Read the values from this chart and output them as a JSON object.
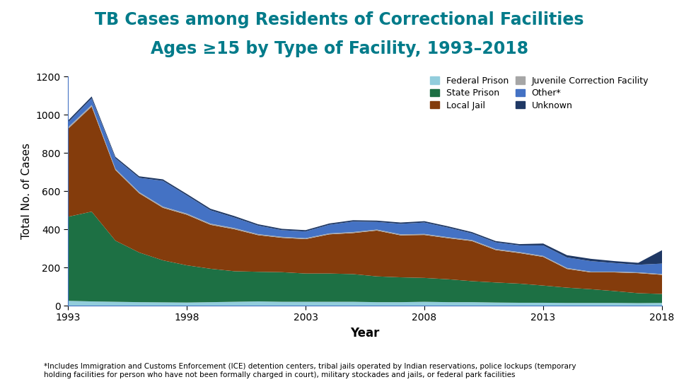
{
  "title_line1": "TB Cases among Residents of Correctional Facilities",
  "title_line2": "Ages ≥15 by Type of Facility, 1993–2018",
  "xlabel": "Year",
  "ylabel": "Total No. of Cases",
  "footnote": "*Includes Immigration and Customs Enforcement (ICE) detention centers, tribal jails operated by Indian reservations, police lockups (temporary\nholding facilities for person who have not been formally charged in court), military stockades and jails, or federal park facilities",
  "years": [
    1993,
    1994,
    1995,
    1996,
    1997,
    1998,
    1999,
    2000,
    2001,
    2002,
    2003,
    2004,
    2005,
    2006,
    2007,
    2008,
    2009,
    2010,
    2011,
    2012,
    2013,
    2014,
    2015,
    2016,
    2017,
    2018
  ],
  "federal_prison": [
    25,
    22,
    20,
    18,
    17,
    16,
    18,
    20,
    22,
    20,
    20,
    20,
    20,
    18,
    18,
    20,
    18,
    18,
    16,
    15,
    15,
    14,
    14,
    14,
    13,
    14
  ],
  "state_prison": [
    440,
    470,
    320,
    260,
    220,
    195,
    175,
    160,
    155,
    155,
    148,
    148,
    145,
    135,
    130,
    125,
    120,
    110,
    105,
    100,
    90,
    80,
    72,
    62,
    52,
    47
  ],
  "local_jail": [
    460,
    550,
    370,
    310,
    275,
    265,
    230,
    220,
    192,
    180,
    180,
    205,
    215,
    240,
    220,
    225,
    215,
    210,
    170,
    160,
    150,
    98,
    88,
    98,
    105,
    100
  ],
  "juvenile": [
    8,
    8,
    6,
    6,
    6,
    6,
    6,
    6,
    5,
    5,
    5,
    5,
    5,
    5,
    5,
    5,
    5,
    5,
    5,
    5,
    5,
    5,
    4,
    4,
    4,
    4
  ],
  "other": [
    25,
    35,
    55,
    75,
    135,
    95,
    70,
    55,
    45,
    35,
    35,
    45,
    55,
    40,
    55,
    60,
    50,
    35,
    35,
    35,
    55,
    55,
    55,
    45,
    40,
    55
  ],
  "unknown": [
    10,
    10,
    8,
    8,
    8,
    8,
    8,
    8,
    7,
    7,
    7,
    7,
    7,
    7,
    7,
    7,
    7,
    7,
    7,
    7,
    10,
    12,
    12,
    10,
    10,
    70
  ],
  "colors": {
    "federal_prison": "#92CDDC",
    "state_prison": "#1D7044",
    "local_jail": "#843C0C",
    "juvenile": "#A6A6A6",
    "other": "#4472C4",
    "unknown": "#1F3864"
  },
  "legend_labels": {
    "federal_prison": "Federal Prison",
    "state_prison": "State Prison",
    "local_jail": "Local Jail",
    "juvenile": "Juvenile Correction Facility",
    "other": "Other*",
    "unknown": "Unknown"
  },
  "ylim": [
    0,
    1200
  ],
  "yticks": [
    0,
    200,
    400,
    600,
    800,
    1000,
    1200
  ],
  "xticks": [
    1993,
    1998,
    2003,
    2008,
    2013,
    2018
  ],
  "title_color": "#007B8A",
  "background_color": "#FFFFFF",
  "title_fontsize": 17,
  "axis_label_fontsize": 12,
  "tick_fontsize": 10,
  "legend_fontsize": 9,
  "footnote_fontsize": 7.5
}
